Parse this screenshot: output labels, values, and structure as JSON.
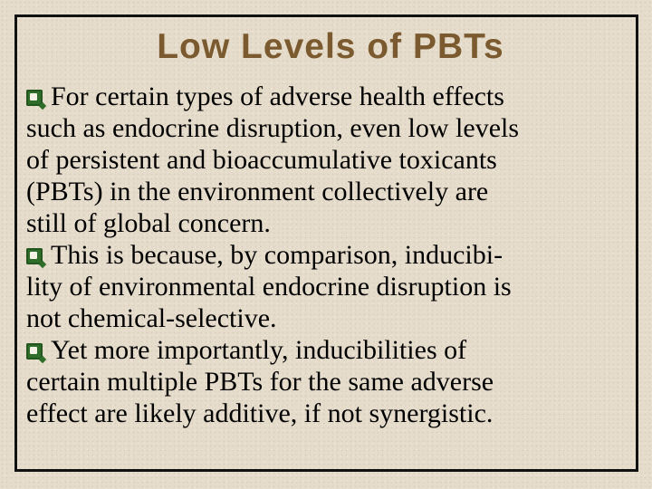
{
  "slide": {
    "title": "Low Levels of PBTs",
    "bullet_icon": "checkbox-square-icon",
    "accent_color": "#7a5a2e",
    "bullet_color": "#2f6e2a",
    "bullets": [
      {
        "lines": [
          "For certain types of adverse health effects",
          "such as endocrine disruption, even low levels",
          "of persistent and bioaccumulative toxicants",
          "(PBTs) in the environment collectively are",
          "still of global concern."
        ]
      },
      {
        "lines": [
          "This is because, by comparison, inducibi-",
          "lity of environmental endocrine disruption is",
          "not chemical-selective."
        ]
      },
      {
        "lines": [
          "Yet more importantly, inducibilities of",
          "certain multiple PBTs for the same adverse",
          "effect are likely additive, if not synergistic."
        ]
      }
    ]
  }
}
